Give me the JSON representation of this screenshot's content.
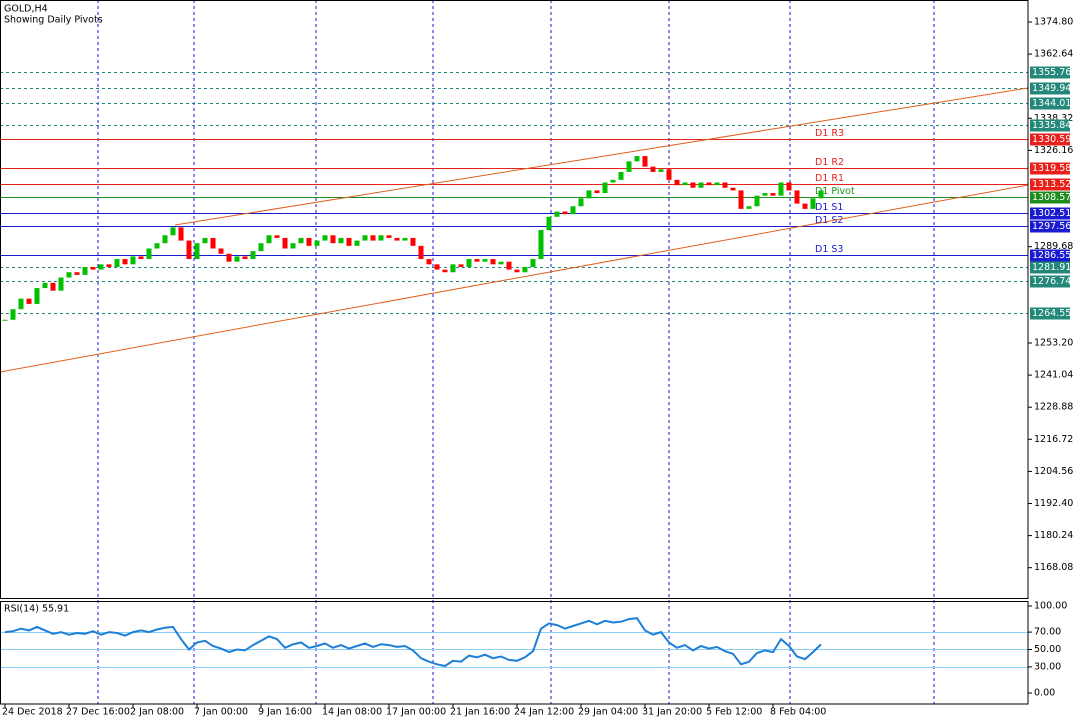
{
  "chart_data": [
    {
      "type": "candlestick",
      "title": "GOLD,H4",
      "subtitle": "Showing Daily Pivots",
      "categories": [
        "24 Dec 2018",
        null,
        null,
        null,
        null,
        null,
        null,
        null,
        "27 Dec 16:00",
        null,
        null,
        null,
        null,
        null,
        null,
        null,
        "2 Jan 08:00",
        null,
        null,
        null,
        null,
        null,
        null,
        null,
        "7 Jan 00:00",
        null,
        null,
        null,
        null,
        null,
        null,
        null,
        "9 Jan 16:00",
        null,
        null,
        null,
        null,
        null,
        null,
        null,
        "14 Jan 08:00",
        null,
        null,
        null,
        null,
        null,
        null,
        null,
        "17 Jan 00:00",
        null,
        null,
        null,
        null,
        null,
        null,
        null,
        "21 Jan 16:00",
        null,
        null,
        null,
        null,
        null,
        null,
        null,
        "24 Jan 12:00",
        null,
        null,
        null,
        null,
        null,
        null,
        null,
        "29 Jan 04:00",
        null,
        null,
        null,
        null,
        null,
        null,
        null,
        "31 Jan 20:00",
        null,
        null,
        null,
        null,
        null,
        null,
        null,
        "5 Feb 12:00",
        null,
        null,
        null,
        null,
        null,
        null,
        null,
        "8 Feb 04:00",
        null,
        null,
        null,
        null,
        null,
        null
      ],
      "values": [
        1262,
        1266,
        1270,
        1268,
        1274,
        1276,
        1273,
        1278,
        1280,
        1279,
        1282,
        1281,
        1283,
        1282,
        1285,
        1283,
        1286,
        1285,
        1289,
        1291,
        1294,
        1297,
        1292,
        1285,
        1291,
        1293,
        1289,
        1287,
        1284,
        1286,
        1285,
        1288,
        1291,
        1294,
        1293,
        1289,
        1291,
        1293,
        1290,
        1292,
        1294,
        1291,
        1293,
        1290,
        1292,
        1294,
        1292,
        1294,
        1293,
        1292,
        1293,
        1290,
        1285,
        1283,
        1281,
        1280,
        1283,
        1282,
        1285,
        1284,
        1285,
        1283,
        1284,
        1281,
        1280,
        1282,
        1285,
        1296,
        1301,
        1303,
        1302,
        1305,
        1308,
        1311,
        1310,
        1314,
        1315,
        1318,
        1322,
        1324,
        1320,
        1318,
        1319,
        1315,
        1313,
        1314,
        1312,
        1314,
        1313,
        1314,
        1312,
        1311,
        1304,
        1305,
        1309,
        1310,
        1309,
        1314,
        1311,
        1306,
        1304,
        1308,
        1311
      ],
      "up_color": "#00c000",
      "down_color": "#ff0000",
      "ylim": [
        1156.6,
        1383.13
      ],
      "yticks": [
        {
          "value": 1374.8,
          "label": "1374.80"
        },
        {
          "value": 1362.64,
          "label": "1362.64"
        },
        {
          "value": 1338.32,
          "label": "1338.32"
        },
        {
          "value": 1326.16,
          "label": "1326.16"
        },
        {
          "value": 1289.68,
          "label": "1289.68"
        },
        {
          "value": 1253.2,
          "label": "1253.20"
        },
        {
          "value": 1241.04,
          "label": "1241.04"
        },
        {
          "value": 1228.88,
          "label": "1228.88"
        },
        {
          "value": 1216.72,
          "label": "1216.72"
        },
        {
          "value": 1204.56,
          "label": "1204.56"
        },
        {
          "value": 1192.4,
          "label": "1192.40"
        },
        {
          "value": 1180.24,
          "label": "1180.24"
        },
        {
          "value": 1168.08,
          "label": "1168.08"
        }
      ],
      "levels": [
        {
          "value": 1355.76,
          "color": "#23887a",
          "style": "dashed"
        },
        {
          "value": 1349.94,
          "color": "#23887a",
          "style": "dashed"
        },
        {
          "value": 1344.01,
          "color": "#23887a",
          "style": "dashed"
        },
        {
          "value": 1335.84,
          "color": "#23887a",
          "style": "dashed"
        },
        {
          "value": 1330.59,
          "color": "#e8201a",
          "style": "solid",
          "name": "D1 R3"
        },
        {
          "value": 1319.58,
          "color": "#e8201a",
          "style": "solid",
          "name": "D1 R2"
        },
        {
          "value": 1313.52,
          "color": "#e8201a",
          "style": "solid",
          "name": "D1 R1"
        },
        {
          "value": 1308.57,
          "color": "#1e8c1e",
          "style": "solid",
          "name": "D1 Pivot"
        },
        {
          "value": 1302.51,
          "color": "#1a1ad0",
          "style": "solid",
          "name": "D1 S1"
        },
        {
          "value": 1297.56,
          "color": "#1a1ad0",
          "style": "solid",
          "name": "D1 S2"
        },
        {
          "value": 1286.55,
          "color": "#1a1ad0",
          "style": "solid",
          "name": "D1 S3"
        },
        {
          "value": 1281.91,
          "color": "#23887a",
          "style": "dashed"
        },
        {
          "value": 1276.74,
          "color": "#23887a",
          "style": "dashed"
        },
        {
          "value": 1264.55,
          "color": "#23887a",
          "style": "dashed"
        }
      ]
    },
    {
      "type": "line",
      "title": "RSI(14) 55.91",
      "color": "#1e7fd8",
      "values": [
        70,
        71,
        74,
        72,
        76,
        72,
        68,
        70,
        67,
        69,
        68,
        71,
        67,
        70,
        69,
        66,
        70,
        72,
        70,
        73,
        75,
        76,
        62,
        50,
        58,
        60,
        54,
        51,
        47,
        50,
        49,
        55,
        60,
        65,
        62,
        52,
        56,
        58,
        52,
        54,
        57,
        52,
        55,
        51,
        54,
        57,
        53,
        56,
        55,
        53,
        54,
        49,
        40,
        36,
        33,
        31,
        37,
        36,
        43,
        41,
        44,
        40,
        42,
        38,
        37,
        41,
        48,
        74,
        80,
        78,
        74,
        77,
        80,
        83,
        79,
        83,
        81,
        82,
        85,
        86,
        72,
        67,
        70,
        58,
        52,
        55,
        49,
        54,
        51,
        53,
        48,
        45,
        33,
        36,
        46,
        49,
        47,
        62,
        54,
        42,
        39,
        47,
        55.91
      ],
      "ylim": [
        -12.65,
        105.75
      ],
      "yticks": [
        {
          "value": 100,
          "label": "100.00"
        },
        {
          "value": 70,
          "label": "70.00"
        },
        {
          "value": 50,
          "label": "50.00"
        },
        {
          "value": 30,
          "label": "30.00"
        },
        {
          "value": 0,
          "label": "0.00"
        }
      ],
      "levels": [
        70,
        50,
        30
      ],
      "level_color": "#87cefa"
    }
  ]
}
